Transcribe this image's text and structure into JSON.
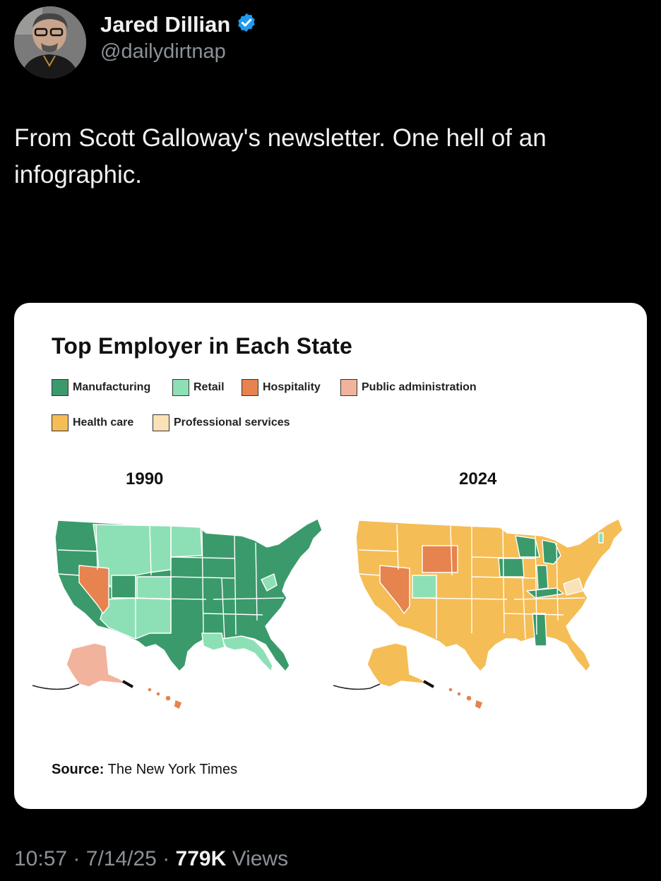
{
  "tweet": {
    "author_name": "Jared Dillian",
    "author_handle": "@dailydirtnap",
    "text": "From Scott Galloway's newsletter. One hell of an infographic.",
    "time": "10:57",
    "date": "7/14/25",
    "views_count": "779K",
    "views_label": "Views",
    "separator": "·"
  },
  "infographic": {
    "title": "Top Employer in Each State",
    "legend": [
      {
        "label": "Manufacturing",
        "color": "#3a9a6c"
      },
      {
        "label": "Retail",
        "color": "#8de0b5"
      },
      {
        "label": "Hospitality",
        "color": "#e6834e"
      },
      {
        "label": "Public administration",
        "color": "#f2b39c"
      },
      {
        "label": "Health care",
        "color": "#f5bd55"
      },
      {
        "label": "Professional services",
        "color": "#fae1b8"
      }
    ],
    "years": [
      "1990",
      "2024"
    ],
    "source_label": "Source:",
    "source_value": "The New York Times"
  },
  "colors": {
    "background": "#000000",
    "verified": "#1d9bf0",
    "muted_text": "#8b9197"
  },
  "icons": [
    "verified-badge-icon"
  ]
}
